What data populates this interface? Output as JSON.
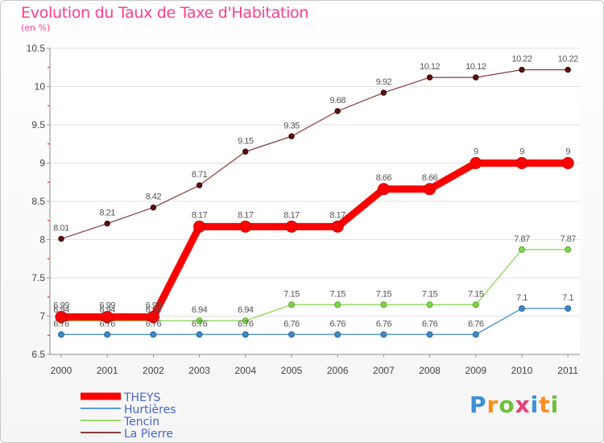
{
  "header": {
    "title": "Evolution du Taux de Taxe d'Habitation",
    "subtitle": "(en %)"
  },
  "logo": {
    "text": "Proxiti"
  },
  "chart_data": {
    "type": "line",
    "title": "Evolution du Taux de Taxe d'Habitation",
    "subtitle": "(en %)",
    "categories": [
      "2000",
      "2001",
      "2002",
      "2003",
      "2004",
      "2005",
      "2006",
      "2007",
      "2008",
      "2009",
      "2010",
      "2011"
    ],
    "ylim": [
      6.5,
      10.5
    ],
    "yticks": [
      6.5,
      7,
      7.5,
      8,
      8.5,
      9,
      9.5,
      10,
      10.5
    ],
    "legend_position": "bottom-left",
    "series": [
      {
        "name": "THEYS",
        "color": "#ff0000",
        "values": [
          6.99,
          6.99,
          6.99,
          8.17,
          8.17,
          8.17,
          8.17,
          8.66,
          8.66,
          9,
          9,
          9
        ],
        "labels": [
          "6.99",
          "6.99",
          "6.99",
          "8.17",
          "8.17",
          "8.17",
          "8.17",
          "8.66",
          "8.66",
          "9",
          "9",
          "9"
        ]
      },
      {
        "name": "Hurtières",
        "color": "#5b9bd5",
        "values": [
          6.76,
          6.76,
          6.76,
          6.76,
          6.76,
          6.76,
          6.76,
          6.76,
          6.76,
          6.76,
          7.1,
          7.1
        ],
        "labels": [
          "6.76",
          "6.76",
          "6.76",
          "6.76",
          "6.76",
          "6.76",
          "6.76",
          "6.76",
          "6.76",
          "6.76",
          "7.1",
          "7.1"
        ]
      },
      {
        "name": "Tencin",
        "color": "#99dd66",
        "values": [
          6.94,
          6.94,
          6.94,
          6.94,
          6.94,
          7.15,
          7.15,
          7.15,
          7.15,
          7.15,
          7.87,
          7.87
        ],
        "labels": [
          "6.94",
          "6.94",
          "6.94",
          "6.94",
          "6.94",
          "7.15",
          "7.15",
          "7.15",
          "7.15",
          "7.15",
          "7.87",
          "7.87"
        ]
      },
      {
        "name": "La Pierre",
        "color": "#8b3a3a",
        "values": [
          8.01,
          8.21,
          8.42,
          8.71,
          9.15,
          9.35,
          9.68,
          9.92,
          10.12,
          10.12,
          10.22,
          10.22
        ],
        "labels": [
          "8.01",
          "8.21",
          "8.42",
          "8.71",
          "9.15",
          "9.35",
          "9.68",
          "9.92",
          "10.12",
          "10.12",
          "10.22",
          "10.22"
        ]
      }
    ]
  }
}
